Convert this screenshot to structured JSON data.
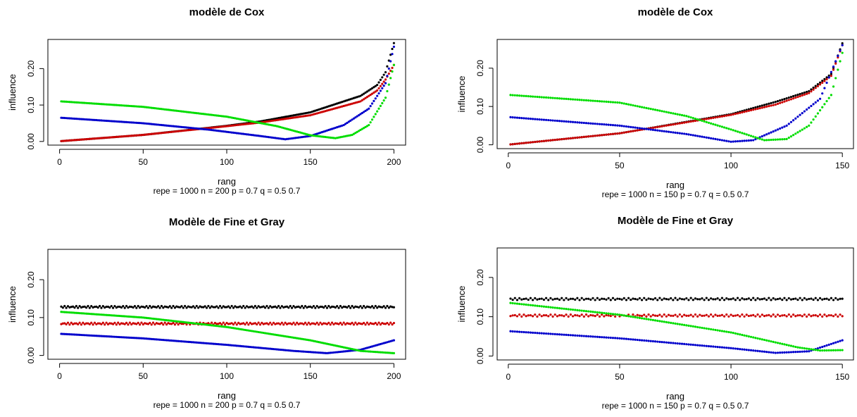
{
  "chart_data": [
    {
      "type": "scatter",
      "title": "modèle de Cox",
      "xlabel": "rang",
      "subtitle": "repe = 1000 n = 200   p = 0.7   q = 0.5 0.7",
      "ylabel": "influence",
      "xlim": [
        -7,
        207
      ],
      "ylim": [
        -0.01,
        0.28
      ],
      "xticks": [
        0,
        50,
        100,
        150,
        200
      ],
      "yticks": [
        0.0,
        0.1,
        0.2
      ],
      "ytick_labels": [
        "0.00",
        "0.10",
        "0.20"
      ],
      "n": 200,
      "grid": false,
      "series": [
        {
          "color": "#000000",
          "knots": [
            [
              1,
              0.001
            ],
            [
              50,
              0.018
            ],
            [
              100,
              0.043
            ],
            [
              120,
              0.055
            ],
            [
              150,
              0.08
            ],
            [
              180,
              0.125
            ],
            [
              190,
              0.155
            ],
            [
              195,
              0.19
            ],
            [
              200,
              0.27
            ]
          ]
        },
        {
          "color": "#cc0000",
          "knots": [
            [
              1,
              0.001
            ],
            [
              50,
              0.018
            ],
            [
              100,
              0.042
            ],
            [
              120,
              0.052
            ],
            [
              150,
              0.072
            ],
            [
              180,
              0.11
            ],
            [
              190,
              0.14
            ],
            [
              195,
              0.17
            ],
            [
              200,
              0.21
            ]
          ]
        },
        {
          "color": "#0000cc",
          "knots": [
            [
              1,
              0.065
            ],
            [
              50,
              0.05
            ],
            [
              90,
              0.032
            ],
            [
              120,
              0.015
            ],
            [
              135,
              0.006
            ],
            [
              150,
              0.015
            ],
            [
              170,
              0.045
            ],
            [
              185,
              0.09
            ],
            [
              195,
              0.16
            ],
            [
              200,
              0.26
            ]
          ]
        },
        {
          "color": "#00dd00",
          "knots": [
            [
              1,
              0.11
            ],
            [
              50,
              0.095
            ],
            [
              100,
              0.068
            ],
            [
              130,
              0.042
            ],
            [
              150,
              0.017
            ],
            [
              165,
              0.009
            ],
            [
              175,
              0.018
            ],
            [
              185,
              0.045
            ],
            [
              195,
              0.12
            ],
            [
              200,
              0.21
            ]
          ]
        }
      ]
    },
    {
      "type": "scatter",
      "title": "modèle de Cox",
      "xlabel": "rang",
      "subtitle": "repe = 1000 n = 150   p = 0.7   q = 0.5 0.7",
      "ylabel": "influence",
      "xlim": [
        -5,
        155
      ],
      "ylim": [
        -0.01,
        0.275
      ],
      "xticks": [
        0,
        50,
        100,
        150
      ],
      "yticks": [
        0.0,
        0.1,
        0.2
      ],
      "ytick_labels": [
        "0.00",
        "0.10",
        "0.20"
      ],
      "n": 150,
      "grid": false,
      "series": [
        {
          "color": "#000000",
          "knots": [
            [
              1,
              0.001
            ],
            [
              50,
              0.03
            ],
            [
              100,
              0.08
            ],
            [
              120,
              0.112
            ],
            [
              135,
              0.14
            ],
            [
              145,
              0.185
            ],
            [
              150,
              0.265
            ]
          ]
        },
        {
          "color": "#cc0000",
          "knots": [
            [
              1,
              0.001
            ],
            [
              50,
              0.03
            ],
            [
              100,
              0.078
            ],
            [
              120,
              0.105
            ],
            [
              135,
              0.135
            ],
            [
              145,
              0.18
            ],
            [
              150,
              0.26
            ]
          ]
        },
        {
          "color": "#0000cc",
          "knots": [
            [
              1,
              0.072
            ],
            [
              50,
              0.05
            ],
            [
              80,
              0.028
            ],
            [
              100,
              0.008
            ],
            [
              110,
              0.012
            ],
            [
              125,
              0.05
            ],
            [
              140,
              0.12
            ],
            [
              150,
              0.26
            ]
          ]
        },
        {
          "color": "#00dd00",
          "knots": [
            [
              1,
              0.13
            ],
            [
              50,
              0.11
            ],
            [
              80,
              0.075
            ],
            [
              100,
              0.04
            ],
            [
              115,
              0.012
            ],
            [
              125,
              0.015
            ],
            [
              135,
              0.05
            ],
            [
              145,
              0.13
            ],
            [
              150,
              0.24
            ]
          ]
        }
      ]
    },
    {
      "type": "scatter",
      "title": "Modèle de Fine et Gray",
      "xlabel": "rang",
      "subtitle": "repe = 1000 n = 200   p = 0.7   q = 0.5 0.7",
      "ylabel": "influence",
      "xlim": [
        -7,
        207
      ],
      "ylim": [
        -0.01,
        0.28
      ],
      "xticks": [
        0,
        50,
        100,
        150,
        200
      ],
      "yticks": [
        0.0,
        0.1,
        0.2
      ],
      "ytick_labels": [
        "0.00",
        "0.10",
        "0.20"
      ],
      "n": 200,
      "grid": false,
      "series": [
        {
          "color": "#000000",
          "knots": [
            [
              1,
              0.128
            ],
            [
              200,
              0.128
            ]
          ]
        },
        {
          "color": "#cc0000",
          "knots": [
            [
              1,
              0.084
            ],
            [
              200,
              0.084
            ]
          ]
        },
        {
          "color": "#0000cc",
          "knots": [
            [
              1,
              0.057
            ],
            [
              50,
              0.045
            ],
            [
              100,
              0.028
            ],
            [
              140,
              0.012
            ],
            [
              160,
              0.006
            ],
            [
              180,
              0.015
            ],
            [
              200,
              0.04
            ]
          ]
        },
        {
          "color": "#00dd00",
          "knots": [
            [
              1,
              0.115
            ],
            [
              50,
              0.1
            ],
            [
              100,
              0.075
            ],
            [
              150,
              0.04
            ],
            [
              180,
              0.012
            ],
            [
              200,
              0.006
            ]
          ]
        }
      ]
    },
    {
      "type": "scatter",
      "title": "Modèle de Fine et Gray",
      "xlabel": "rang",
      "subtitle": "repe = 1000 n = 150   p = 0.7   q = 0.5 0.7",
      "ylabel": "influence",
      "xlim": [
        -5,
        155
      ],
      "ylim": [
        -0.01,
        0.275
      ],
      "xticks": [
        0,
        50,
        100,
        150
      ],
      "yticks": [
        0.0,
        0.1,
        0.2
      ],
      "ytick_labels": [
        "0.00",
        "0.10",
        "0.20"
      ],
      "n": 150,
      "grid": false,
      "series": [
        {
          "color": "#000000",
          "knots": [
            [
              1,
              0.145
            ],
            [
              150,
              0.145
            ]
          ]
        },
        {
          "color": "#cc0000",
          "knots": [
            [
              1,
              0.103
            ],
            [
              150,
              0.103
            ]
          ]
        },
        {
          "color": "#0000cc",
          "knots": [
            [
              1,
              0.063
            ],
            [
              50,
              0.045
            ],
            [
              100,
              0.02
            ],
            [
              120,
              0.008
            ],
            [
              135,
              0.012
            ],
            [
              150,
              0.04
            ]
          ]
        },
        {
          "color": "#00dd00",
          "knots": [
            [
              1,
              0.135
            ],
            [
              50,
              0.105
            ],
            [
              100,
              0.06
            ],
            [
              130,
              0.022
            ],
            [
              140,
              0.014
            ],
            [
              150,
              0.015
            ]
          ]
        }
      ]
    }
  ]
}
